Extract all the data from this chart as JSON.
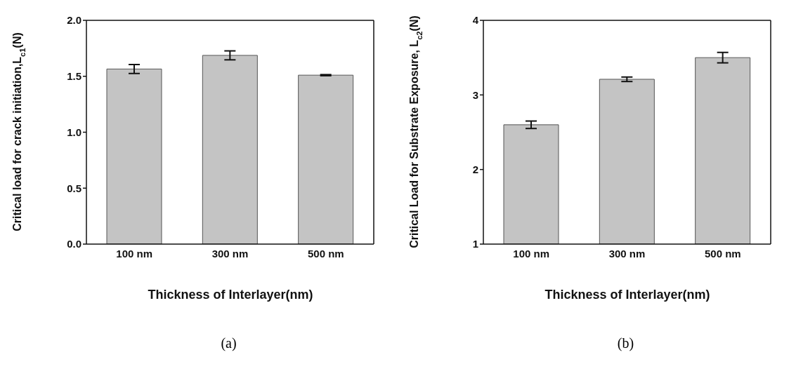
{
  "chart_data": [
    {
      "type": "bar",
      "categories": [
        "100 nm",
        "300 nm",
        "500 nm"
      ],
      "values": [
        1.565,
        1.687,
        1.51
      ],
      "errors": [
        0.04,
        0.04,
        0.005
      ],
      "color": "#c4c4c4",
      "xlabel": "Thickness of Interlayer(nm)",
      "ylabel": "Critical load for crack initiation,L$_{c1}$(N)",
      "ylim": [
        0,
        2
      ],
      "yticks": [
        {
          "value": 0,
          "label": "0.0"
        },
        {
          "value": 0.5,
          "label": "0.5"
        },
        {
          "value": 1,
          "label": "1.0"
        },
        {
          "value": 1.5,
          "label": "1.5"
        },
        {
          "value": 2,
          "label": "2.0"
        }
      ],
      "grid": false,
      "legend": false,
      "annotations": [
        "(a)"
      ]
    },
    {
      "type": "bar",
      "categories": [
        "100 nm",
        "300 nm",
        "500 nm"
      ],
      "values": [
        2.6,
        3.21,
        3.5
      ],
      "errors": [
        0.05,
        0.03,
        0.07
      ],
      "color": "#c4c4c4",
      "xlabel": "Thickness of Interlayer(nm)",
      "ylabel": "Critical Load for Substrate Exposure, L$_{c2}$(N)",
      "ylim": [
        1,
        4
      ],
      "yticks": [
        1,
        2,
        3,
        4
      ],
      "grid": false,
      "legend": false,
      "annotations": [
        "(b)"
      ]
    }
  ]
}
